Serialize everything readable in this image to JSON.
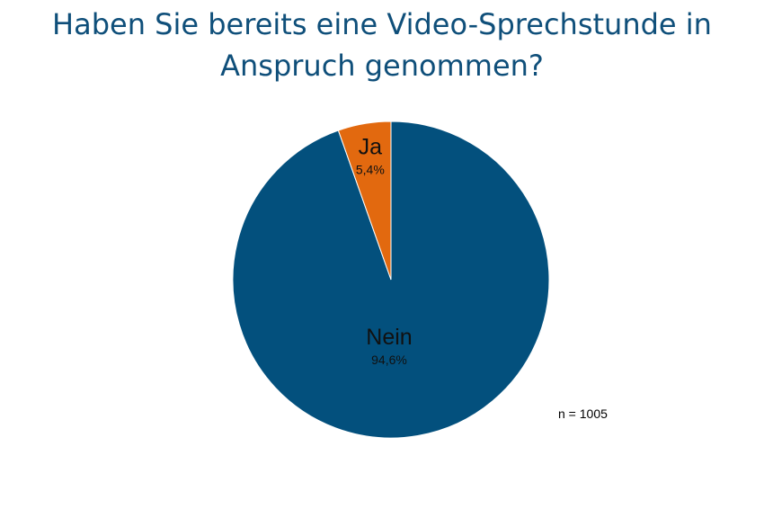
{
  "chart_data": {
    "type": "pie",
    "title": "Haben Sie bereits eine Video-Sprechstunde in Anspruch genommen?",
    "slices": [
      {
        "label": "Nein",
        "value": 94.6,
        "display": "94,6%",
        "color": "#03507d"
      },
      {
        "label": "Ja",
        "value": 5.4,
        "display": "5,4%",
        "color": "#e2690f"
      }
    ],
    "start_angle_deg": 0,
    "direction": "clockwise",
    "legend": "none",
    "note": "n = 1005"
  }
}
